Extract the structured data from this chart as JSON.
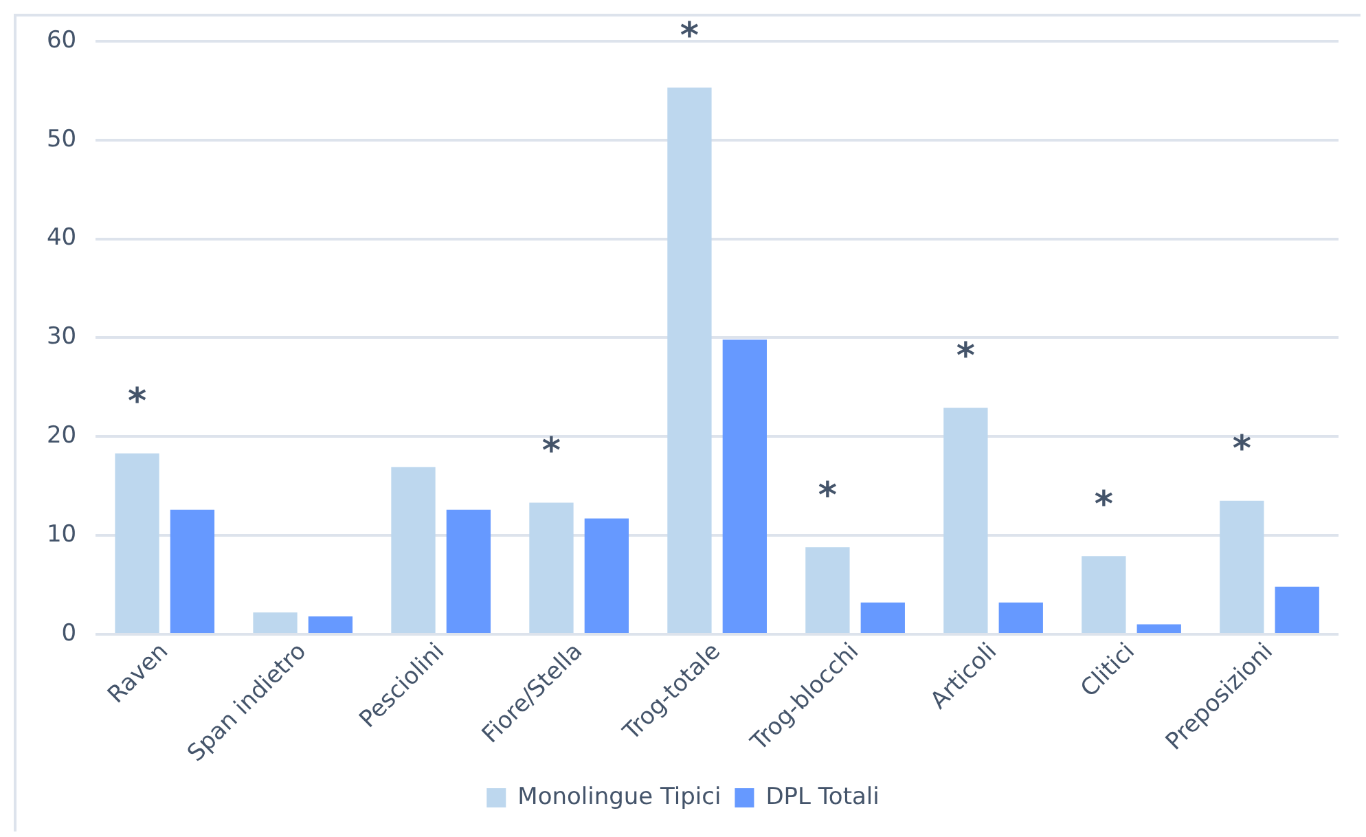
{
  "chart_data": {
    "type": "bar",
    "categories": [
      "Raven",
      "Span indietro",
      "Pesciolini",
      "Fiore/Stella",
      "Trog-totale",
      "Trog-blocchi",
      "Articoli",
      "Clitici",
      "Preposizioni"
    ],
    "series": [
      {
        "name": "Monolingue Tipici",
        "color": "#bdd7ee",
        "values": [
          18.3,
          2.2,
          16.9,
          13.3,
          55.3,
          8.8,
          22.9,
          7.9,
          13.5
        ],
        "value_labels": [
          "*",
          null,
          null,
          "*",
          "*",
          "*",
          "*",
          "*",
          "*"
        ]
      },
      {
        "name": "DPL Totali",
        "color": "#6699ff",
        "values": [
          12.6,
          1.8,
          12.6,
          11.7,
          29.8,
          3.2,
          3.2,
          1.0,
          4.8
        ]
      }
    ],
    "ylim": [
      0,
      60
    ],
    "yticks": [
      0,
      10,
      20,
      30,
      40,
      50,
      60
    ],
    "grid": "y",
    "legend": "bottom"
  }
}
